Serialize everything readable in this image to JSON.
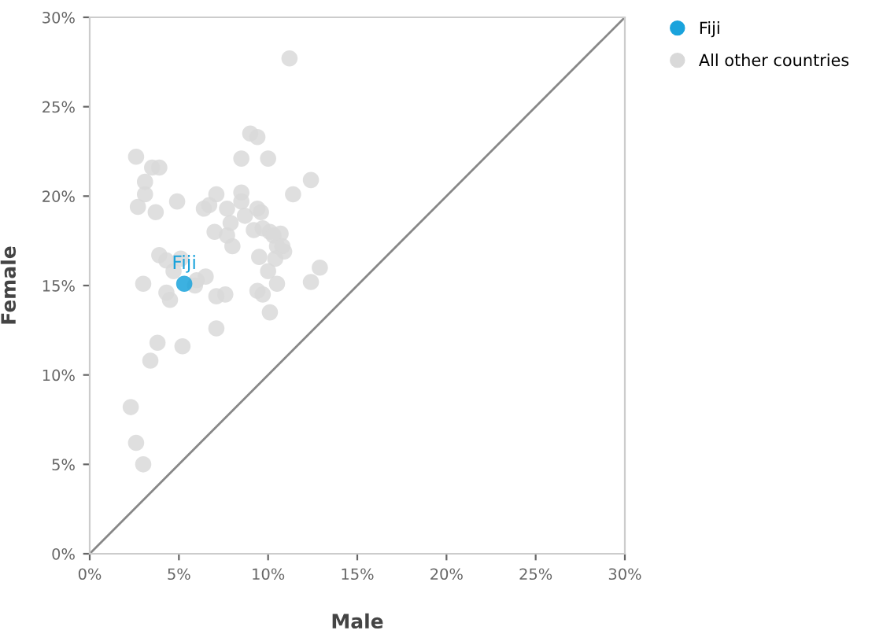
{
  "chart_data": {
    "type": "scatter",
    "xlabel": "Male",
    "ylabel": "Female",
    "xlim": [
      0,
      30
    ],
    "ylim": [
      0,
      30
    ],
    "xticks": [
      {
        "value": 0,
        "label": "0%"
      },
      {
        "value": 5,
        "label": "5%"
      },
      {
        "value": 10,
        "label": "10%"
      },
      {
        "value": 15,
        "label": "15%"
      },
      {
        "value": 20,
        "label": "20%"
      },
      {
        "value": 25,
        "label": "25%"
      },
      {
        "value": 30,
        "label": "30%"
      }
    ],
    "yticks": [
      {
        "value": 0,
        "label": "0%"
      },
      {
        "value": 5,
        "label": "5%"
      },
      {
        "value": 10,
        "label": "10%"
      },
      {
        "value": 15,
        "label": "15%"
      },
      {
        "value": 20,
        "label": "20%"
      },
      {
        "value": 25,
        "label": "25%"
      },
      {
        "value": 30,
        "label": "30%"
      }
    ],
    "grid": false,
    "legend": "top right",
    "marker": "circle",
    "series": [
      {
        "type": "line",
        "marker": "none",
        "color": "#888888",
        "x": [
          0,
          30
        ],
        "values": [
          0,
          30
        ]
      },
      {
        "name": "All other countries",
        "color": "#d9d9d9",
        "x": [
          11.2,
          9.0,
          9.4,
          2.6,
          3.5,
          3.9,
          8.5,
          10.0,
          3.1,
          3.1,
          2.7,
          4.9,
          3.7,
          12.4,
          11.4,
          7.1,
          8.5,
          8.5,
          6.4,
          6.7,
          7.7,
          8.7,
          9.4,
          9.6,
          7.0,
          7.9,
          9.2,
          9.7,
          8.0,
          7.7,
          10.1,
          10.7,
          10.3,
          10.5,
          10.9,
          10.8,
          9.5,
          10.4,
          3.9,
          4.3,
          5.1,
          12.9,
          10.0,
          3.0,
          4.7,
          4.3,
          4.5,
          6.0,
          6.5,
          5.9,
          7.1,
          7.6,
          9.4,
          9.7,
          10.5,
          12.4,
          10.1,
          7.1,
          3.8,
          5.2,
          3.4,
          2.3,
          2.6,
          3.0
        ],
        "values": [
          27.7,
          23.5,
          23.3,
          22.2,
          21.6,
          21.6,
          22.1,
          22.1,
          20.8,
          20.1,
          19.4,
          19.7,
          19.1,
          20.9,
          20.1,
          20.1,
          20.2,
          19.7,
          19.3,
          19.5,
          19.3,
          18.9,
          19.3,
          19.1,
          18.0,
          18.5,
          18.1,
          18.2,
          17.2,
          17.8,
          18.0,
          17.9,
          17.8,
          17.2,
          16.9,
          17.2,
          16.6,
          16.5,
          16.7,
          16.4,
          16.5,
          16.0,
          15.8,
          15.1,
          15.8,
          14.6,
          14.2,
          15.3,
          15.5,
          15.0,
          14.4,
          14.5,
          14.7,
          14.5,
          15.1,
          15.2,
          13.5,
          12.6,
          11.8,
          11.6,
          10.8,
          8.2,
          6.2,
          5.0
        ]
      },
      {
        "name": "Fiji",
        "color": "#1aa3dc",
        "x": [
          5.3
        ],
        "values": [
          15.1
        ]
      }
    ],
    "annotations": [
      {
        "text": "Fiji",
        "x": 5.3,
        "y": 15.1
      }
    ]
  }
}
